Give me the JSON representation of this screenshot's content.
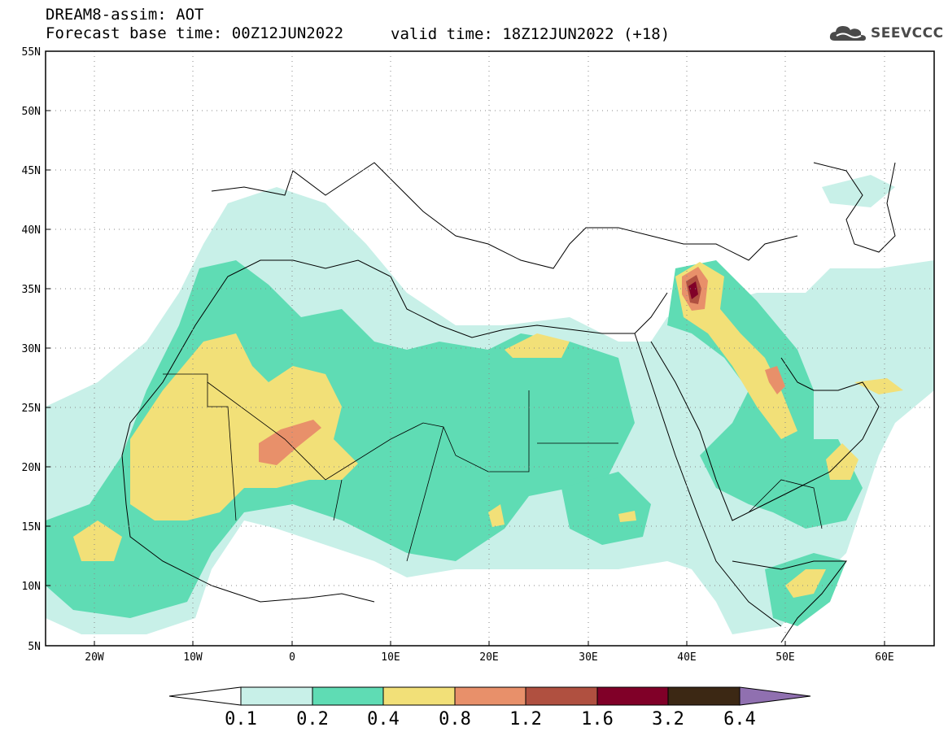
{
  "header": {
    "model_line": "DREAM8-assim: AOT",
    "base_time_line": "Forecast base time: 00Z12JUN2022",
    "valid_time_line": "valid time: 18Z12JUN2022 (+18)",
    "logo_text": "SEEVCCC"
  },
  "map": {
    "lon_range": [
      -25,
      65
    ],
    "lat_range": [
      5,
      55
    ],
    "lat_ticks": [
      "55N",
      "50N",
      "45N",
      "40N",
      "35N",
      "30N",
      "25N",
      "20N",
      "15N",
      "10N",
      "5N"
    ],
    "lon_ticks": [
      "20W",
      "10W",
      "0",
      "10E",
      "20E",
      "30E",
      "40E",
      "50E",
      "60E"
    ],
    "grid": "dotted"
  },
  "colorbar": {
    "thresholds": [
      "0.1",
      "0.2",
      "0.4",
      "0.8",
      "1.2",
      "1.6",
      "3.2",
      "6.4"
    ],
    "colors": [
      "#c8f0e8",
      "#5fdcb4",
      "#f2e078",
      "#e8906a",
      "#b05040",
      "#800028",
      "#3c2814",
      "#9070b0"
    ],
    "under_color": "#ffffff"
  }
}
